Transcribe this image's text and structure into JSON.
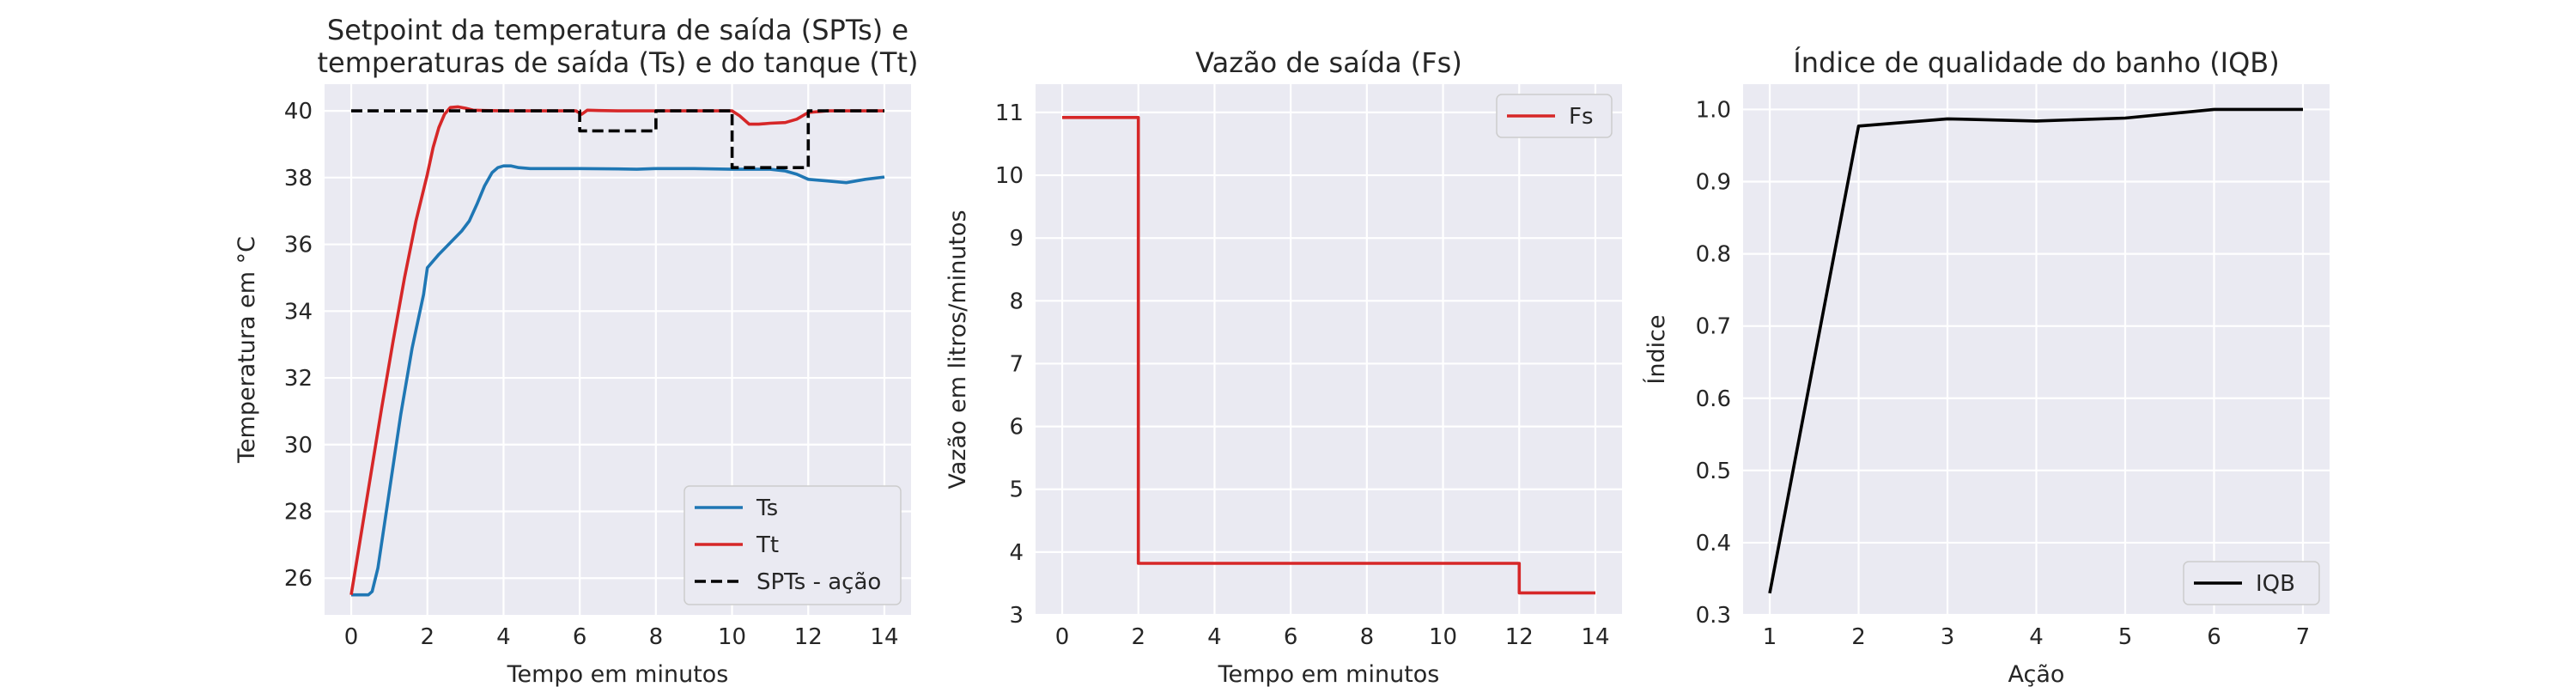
{
  "chart_data": [
    {
      "type": "line",
      "title_lines": [
        "Setpoint da temperatura de saída (SPTs) e",
        "temperaturas de saída (Ts) e do tanque (Tt)"
      ],
      "xlabel": "Tempo em minutos",
      "ylabel": "Temperatura em °C",
      "xlim": [
        -0.7,
        14.7
      ],
      "ylim": [
        24.9,
        40.8
      ],
      "xticks": [
        0,
        2,
        4,
        6,
        8,
        10,
        12,
        14
      ],
      "yticks": [
        26,
        28,
        30,
        32,
        34,
        36,
        38,
        40
      ],
      "grid": true,
      "legend": "lower right",
      "series": [
        {
          "name": "Ts",
          "color": "#1f77b4",
          "style": "solid",
          "x": [
            0,
            0.45,
            0.55,
            0.7,
            1.0,
            1.3,
            1.6,
            1.9,
            2.0,
            2.3,
            2.6,
            2.9,
            3.1,
            3.3,
            3.5,
            3.7,
            3.85,
            4.0,
            4.2,
            4.4,
            4.7,
            5.0,
            6.0,
            7.0,
            7.5,
            8.0,
            9.0,
            10.0,
            11.0,
            11.4,
            11.7,
            12.0,
            12.5,
            13.0,
            13.5,
            14.0
          ],
          "y": [
            25.5,
            25.5,
            25.6,
            26.3,
            28.6,
            30.9,
            32.9,
            34.5,
            35.3,
            35.7,
            36.05,
            36.4,
            36.7,
            37.2,
            37.75,
            38.15,
            38.3,
            38.35,
            38.35,
            38.3,
            38.27,
            38.27,
            38.27,
            38.26,
            38.25,
            38.27,
            38.27,
            38.25,
            38.25,
            38.2,
            38.1,
            37.95,
            37.9,
            37.85,
            37.95,
            38.02
          ]
        },
        {
          "name": "Tt",
          "color": "#d62728",
          "style": "solid",
          "x": [
            0,
            0.2,
            0.5,
            0.8,
            1.1,
            1.4,
            1.7,
            2.0,
            2.15,
            2.3,
            2.45,
            2.6,
            2.8,
            3.0,
            3.2,
            3.5,
            4.0,
            5.0,
            5.9,
            6.05,
            6.2,
            6.5,
            7.0,
            8.0,
            9.0,
            10.0,
            10.2,
            10.45,
            10.7,
            11.0,
            11.4,
            11.7,
            12.0,
            12.5,
            13.0,
            14.0
          ],
          "y": [
            25.5,
            26.9,
            29.0,
            31.1,
            33.1,
            35.0,
            36.7,
            38.1,
            38.9,
            39.5,
            39.9,
            40.1,
            40.12,
            40.08,
            40.02,
            40.01,
            40.0,
            40.0,
            40.0,
            39.9,
            40.02,
            40.01,
            40.0,
            40.0,
            40.0,
            40.0,
            39.85,
            39.6,
            39.6,
            39.63,
            39.65,
            39.75,
            39.95,
            40.0,
            40.0,
            40.0
          ]
        },
        {
          "name": "SPTs - ação",
          "color": "#000000",
          "style": "dashed",
          "x": [
            0,
            6,
            6,
            8,
            8,
            10,
            10,
            12,
            12,
            14
          ],
          "y": [
            40,
            40,
            39.4,
            39.4,
            40,
            40,
            38.3,
            38.3,
            40,
            40
          ]
        }
      ]
    },
    {
      "type": "line",
      "title_lines": [
        "Vazão de saída (Fs)"
      ],
      "xlabel": "Tempo em minutos",
      "ylabel": "Vazão em litros/minutos",
      "xlim": [
        -0.7,
        14.7
      ],
      "ylim": [
        3.0,
        11.45
      ],
      "xticks": [
        0,
        2,
        4,
        6,
        8,
        10,
        12,
        14
      ],
      "yticks": [
        3,
        4,
        5,
        6,
        7,
        8,
        9,
        10,
        11
      ],
      "grid": true,
      "legend": "upper right",
      "series": [
        {
          "name": "Fs",
          "color": "#d62728",
          "style": "solid",
          "x": [
            0,
            2,
            2,
            12,
            12,
            14
          ],
          "y": [
            10.92,
            10.92,
            3.82,
            3.82,
            3.35,
            3.35
          ]
        }
      ]
    },
    {
      "type": "line",
      "title_lines": [
        "Índice de qualidade do banho (IQB)"
      ],
      "xlabel": "Ação",
      "ylabel": "Índice",
      "xlim": [
        0.7,
        7.3
      ],
      "ylim": [
        0.3,
        1.035
      ],
      "xticks": [
        1,
        2,
        3,
        4,
        5,
        6,
        7
      ],
      "yticks": [
        0.3,
        0.4,
        0.5,
        0.6,
        0.7,
        0.8,
        0.9,
        1.0
      ],
      "yticks_labels": [
        "0.3",
        "0.4",
        "0.5",
        "0.6",
        "0.7",
        "0.8",
        "0.9",
        "1.0"
      ],
      "grid": true,
      "legend": "lower right",
      "series": [
        {
          "name": "IQB",
          "color": "#000000",
          "style": "solid",
          "x": [
            1,
            2,
            3,
            4,
            5,
            6,
            7
          ],
          "y": [
            0.33,
            0.977,
            0.987,
            0.984,
            0.988,
            1.0,
            1.0
          ]
        }
      ]
    }
  ]
}
